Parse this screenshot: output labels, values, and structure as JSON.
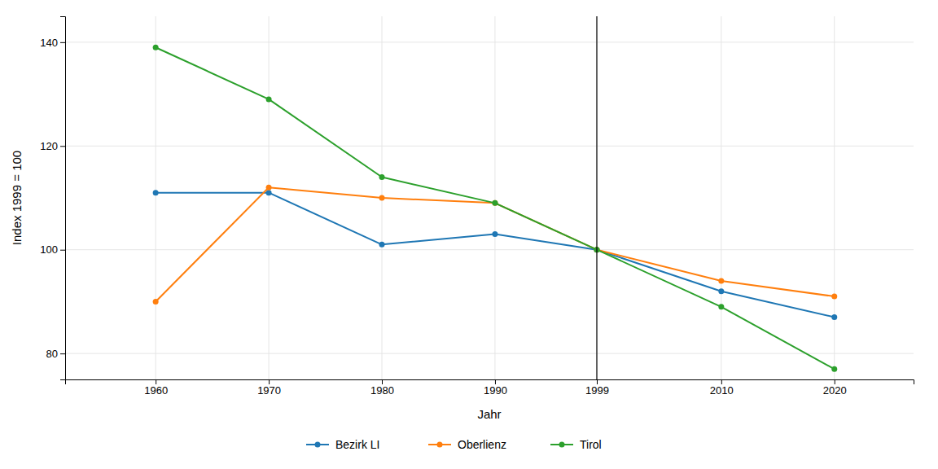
{
  "chart_data": {
    "type": "line",
    "x": [
      1960,
      1970,
      1980,
      1990,
      1999,
      2010,
      2020
    ],
    "series": [
      {
        "name": "Bezirk LI",
        "values": [
          111,
          111,
          101,
          103,
          100,
          92,
          87
        ]
      },
      {
        "name": "Oberlienz",
        "values": [
          90,
          112,
          110,
          109,
          100,
          94,
          91
        ]
      },
      {
        "name": "Tirol",
        "values": [
          139,
          129,
          114,
          109,
          100,
          89,
          77
        ]
      }
    ],
    "xlabel": "Jahr",
    "ylabel": "Index 1999 = 100",
    "xlim": [
      1952,
      2027
    ],
    "xticks": [
      1960,
      1970,
      1980,
      1990,
      1999,
      2010,
      2020
    ],
    "ylim": [
      75,
      145
    ],
    "yticks": [
      80,
      100,
      120,
      140
    ],
    "grid": true,
    "legend": "bottom",
    "marker": "circle",
    "vline": 1999
  }
}
